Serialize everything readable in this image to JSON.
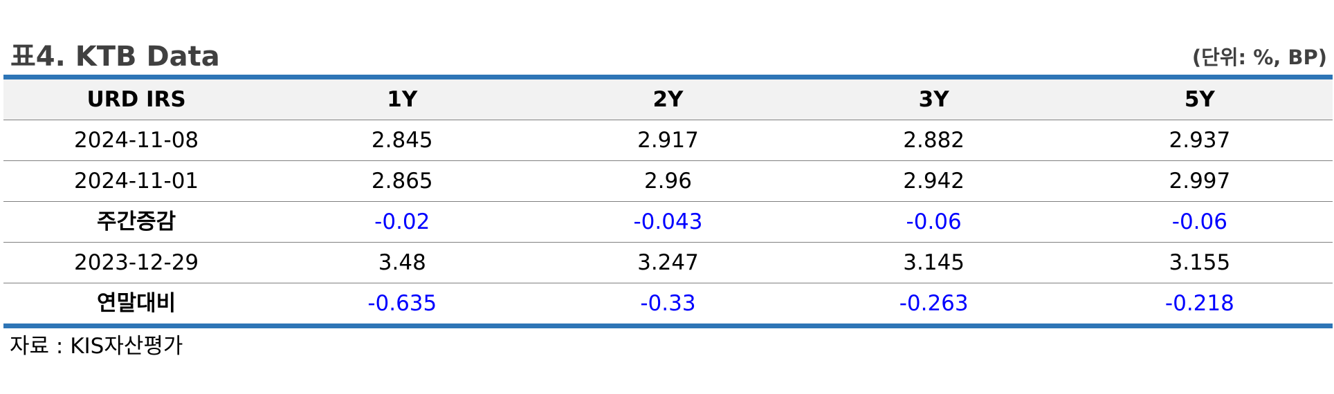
{
  "title": "표4. KTB Data",
  "unit": "(단위: %, BP)",
  "table": {
    "headers": [
      "URD IRS",
      "1Y",
      "2Y",
      "3Y",
      "5Y"
    ],
    "rows": [
      {
        "label": "2024-11-08",
        "values": [
          "2.845",
          "2.917",
          "2.882",
          "2.937"
        ]
      },
      {
        "label": "2024-11-01",
        "values": [
          "2.865",
          "2.96",
          "2.942",
          "2.997"
        ]
      },
      {
        "label": "주간증감",
        "values": [
          "-0.02",
          "-0.043",
          "-0.06",
          "-0.06"
        ]
      },
      {
        "label": "2023-12-29",
        "values": [
          "3.48",
          "3.247",
          "3.145",
          "3.155"
        ]
      },
      {
        "label": "연말대비",
        "values": [
          "-0.635",
          "-0.33",
          "-0.263",
          "-0.218"
        ]
      }
    ]
  },
  "source": "자료 : KIS자산평가",
  "colors": {
    "accent_border": "#2e75b6",
    "header_bg": "#f2f2f2",
    "negative_text": "#0000ff",
    "title_text": "#404040"
  }
}
